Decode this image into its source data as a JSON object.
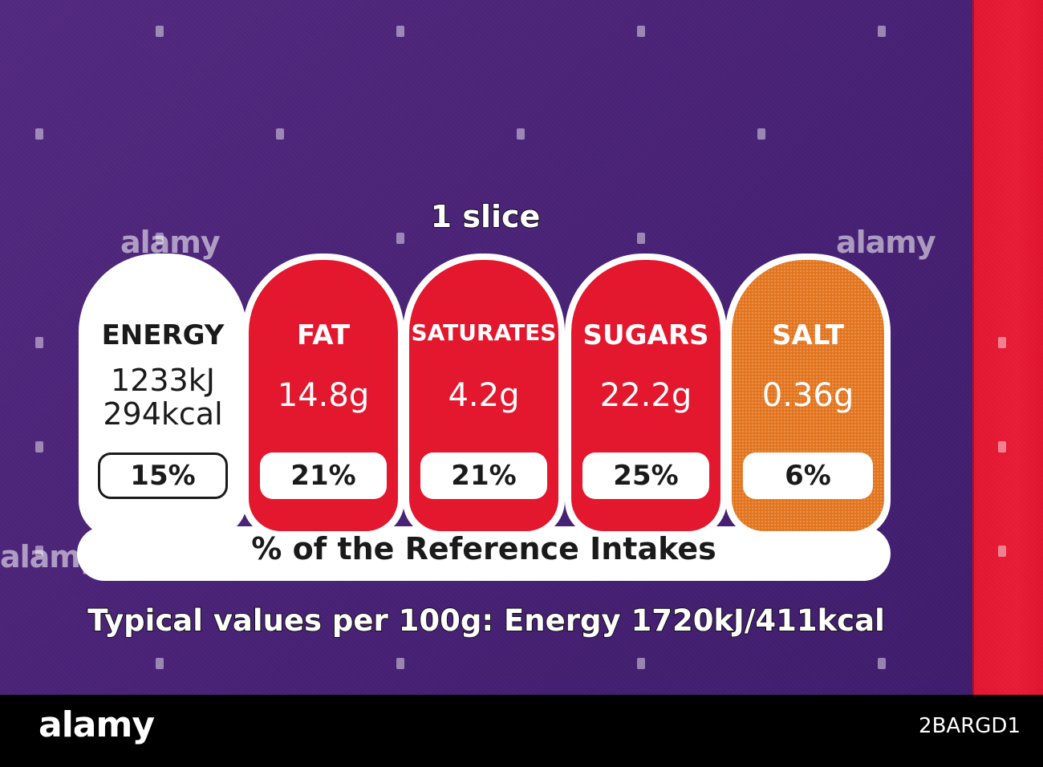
{
  "label": {
    "serving": "1 slice",
    "nutrients": [
      {
        "name": "ENERGY",
        "kj": "1233kJ",
        "kcal": "294kcal",
        "ri": "15%",
        "color": "#ffffff"
      },
      {
        "name": "FAT",
        "amount": "14.8g",
        "ri": "21%",
        "color": "#e3172d"
      },
      {
        "name": "SATURATES",
        "amount": "4.2g",
        "ri": "21%",
        "color": "#e3172d"
      },
      {
        "name": "SUGARS",
        "amount": "22.2g",
        "ri": "25%",
        "color": "#e3172d"
      },
      {
        "name": "SALT",
        "amount": "0.36g",
        "ri": "6%",
        "color": "#e2731c"
      }
    ],
    "reference_intakes": "% of the Reference Intakes",
    "typical_values": "Typical values per 100g: Energy 1720kJ/411kcal"
  },
  "watermark": {
    "text": "alamy"
  },
  "footer": {
    "logo": "alamy",
    "image_id": "2BARGD1"
  },
  "colors": {
    "background": "#4a2378",
    "red_strip": "#e41630",
    "high": "#e3172d",
    "medium": "#e2731c"
  }
}
